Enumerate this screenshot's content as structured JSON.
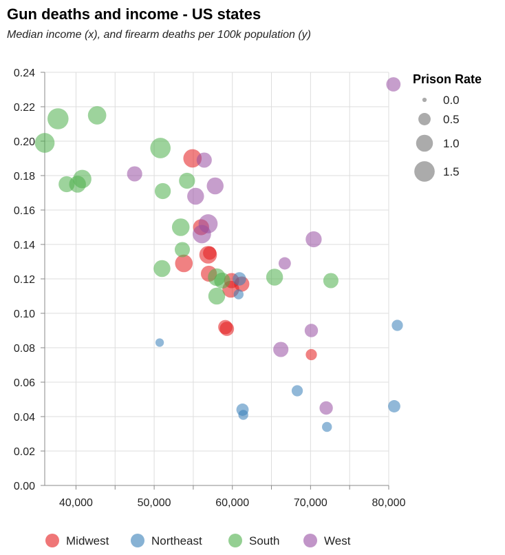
{
  "title": "Gun deaths and income - US states",
  "subtitle": "Median income (x), and firearm deaths per 100k population (y)",
  "colors": {
    "Midwest": "#e41a1c",
    "Northeast": "#377eb8",
    "South": "#4daf4a",
    "West": "#984ea3"
  },
  "chart_data": {
    "type": "scatter",
    "title": "Gun deaths and income - US states",
    "subtitle": "Median income (x), and firearm deaths per 100k population (y)",
    "xlabel": "",
    "ylabel": "",
    "xlim": [
      36000,
      80000
    ],
    "ylim": [
      0,
      0.24
    ],
    "x_ticks": [
      40000,
      50000,
      60000,
      70000,
      80000
    ],
    "x_tick_labels": [
      "40,000",
      "50,000",
      "60,000",
      "70,000",
      "80,000"
    ],
    "y_ticks": [
      0,
      0.02,
      0.04,
      0.06,
      0.08,
      0.1,
      0.12,
      0.14,
      0.16,
      0.18,
      0.2,
      0.22,
      0.24
    ],
    "y_tick_labels": [
      "0.00",
      "0.02",
      "0.04",
      "0.06",
      "0.08",
      "0.10",
      "0.12",
      "0.14",
      "0.16",
      "0.18",
      "0.20",
      "0.22",
      "0.24"
    ],
    "grid": true,
    "size_legend": {
      "title": "Prison Rate",
      "values": [
        0.0,
        0.5,
        1.0,
        1.5
      ],
      "labels": [
        "0.0",
        "0.5",
        "1.0",
        "1.5"
      ],
      "position": "right"
    },
    "color_legend": {
      "labels": [
        "Midwest",
        "Northeast",
        "South",
        "West"
      ],
      "position": "bottom"
    },
    "series": [
      {
        "name": "Midwest",
        "points": [
          {
            "x": 54900,
            "y": 0.19,
            "size": 1.2
          },
          {
            "x": 56000,
            "y": 0.15,
            "size": 0.9
          },
          {
            "x": 56900,
            "y": 0.134,
            "size": 1.1
          },
          {
            "x": 57100,
            "y": 0.135,
            "size": 0.6
          },
          {
            "x": 53800,
            "y": 0.129,
            "size": 1.1
          },
          {
            "x": 57000,
            "y": 0.123,
            "size": 0.9
          },
          {
            "x": 59900,
            "y": 0.119,
            "size": 0.8
          },
          {
            "x": 61200,
            "y": 0.117,
            "size": 0.8
          },
          {
            "x": 59800,
            "y": 0.114,
            "size": 1.0
          },
          {
            "x": 59100,
            "y": 0.092,
            "size": 0.7
          },
          {
            "x": 59300,
            "y": 0.091,
            "size": 0.7
          },
          {
            "x": 70100,
            "y": 0.076,
            "size": 0.4
          }
        ]
      },
      {
        "name": "Northeast",
        "points": [
          {
            "x": 60900,
            "y": 0.12,
            "size": 0.6
          },
          {
            "x": 60800,
            "y": 0.111,
            "size": 0.3
          },
          {
            "x": 50700,
            "y": 0.083,
            "size": 0.2
          },
          {
            "x": 81100,
            "y": 0.093,
            "size": 0.4
          },
          {
            "x": 68300,
            "y": 0.055,
            "size": 0.4
          },
          {
            "x": 61300,
            "y": 0.044,
            "size": 0.5
          },
          {
            "x": 61400,
            "y": 0.041,
            "size": 0.3
          },
          {
            "x": 80700,
            "y": 0.046,
            "size": 0.5
          },
          {
            "x": 72100,
            "y": 0.034,
            "size": 0.3
          }
        ]
      },
      {
        "name": "South",
        "points": [
          {
            "x": 37700,
            "y": 0.213,
            "size": 1.6
          },
          {
            "x": 42700,
            "y": 0.215,
            "size": 1.2
          },
          {
            "x": 36000,
            "y": 0.199,
            "size": 1.4
          },
          {
            "x": 50800,
            "y": 0.196,
            "size": 1.5
          },
          {
            "x": 38800,
            "y": 0.175,
            "size": 0.9
          },
          {
            "x": 40200,
            "y": 0.175,
            "size": 1.0
          },
          {
            "x": 40800,
            "y": 0.178,
            "size": 1.2
          },
          {
            "x": 51100,
            "y": 0.171,
            "size": 0.9
          },
          {
            "x": 54200,
            "y": 0.177,
            "size": 0.9
          },
          {
            "x": 53400,
            "y": 0.15,
            "size": 1.1
          },
          {
            "x": 53600,
            "y": 0.137,
            "size": 0.8
          },
          {
            "x": 51000,
            "y": 0.126,
            "size": 1.0
          },
          {
            "x": 58000,
            "y": 0.121,
            "size": 1.1
          },
          {
            "x": 58700,
            "y": 0.119,
            "size": 0.9
          },
          {
            "x": 58000,
            "y": 0.11,
            "size": 1.0
          },
          {
            "x": 65400,
            "y": 0.121,
            "size": 1.0
          },
          {
            "x": 72600,
            "y": 0.119,
            "size": 0.8
          }
        ]
      },
      {
        "name": "West",
        "points": [
          {
            "x": 47500,
            "y": 0.181,
            "size": 0.8
          },
          {
            "x": 56400,
            "y": 0.189,
            "size": 0.8
          },
          {
            "x": 57800,
            "y": 0.174,
            "size": 1.0
          },
          {
            "x": 55300,
            "y": 0.168,
            "size": 1.0
          },
          {
            "x": 56900,
            "y": 0.152,
            "size": 1.3
          },
          {
            "x": 56100,
            "y": 0.146,
            "size": 1.2
          },
          {
            "x": 70400,
            "y": 0.143,
            "size": 0.9
          },
          {
            "x": 66700,
            "y": 0.129,
            "size": 0.5
          },
          {
            "x": 70100,
            "y": 0.09,
            "size": 0.6
          },
          {
            "x": 66200,
            "y": 0.079,
            "size": 0.8
          },
          {
            "x": 72000,
            "y": 0.045,
            "size": 0.6
          },
          {
            "x": 80600,
            "y": 0.233,
            "size": 0.7
          }
        ]
      }
    ]
  }
}
